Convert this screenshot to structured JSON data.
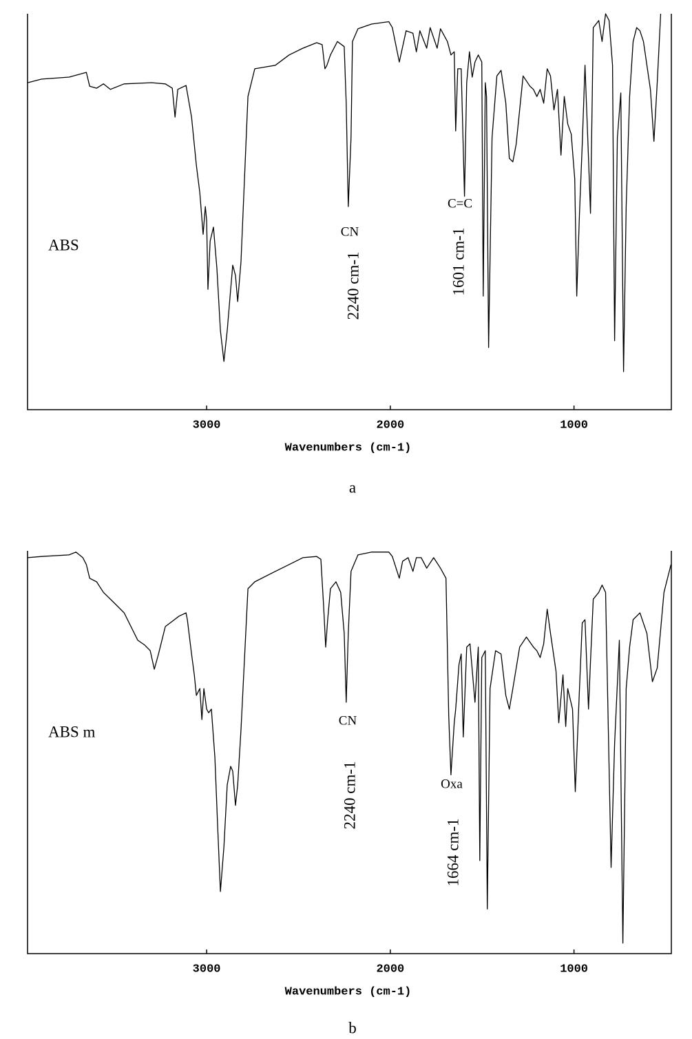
{
  "chart_data": [
    {
      "type": "line",
      "caption": "a",
      "x_label": "Wavenumbers (cm-1)",
      "xlim": [
        3975,
        470
      ],
      "xticks": [
        3000,
        2000,
        1000
      ],
      "ylim": [
        0,
        100
      ],
      "annotations": [
        "CN",
        "2240 cm-1",
        "C=C",
        "1601 cm-1"
      ],
      "x": [
        3974,
        3899,
        3749,
        3655,
        3637,
        3599,
        3562,
        3524,
        3449,
        3300,
        3225,
        3187,
        3172,
        3157,
        3112,
        3082,
        3056,
        3037,
        3019,
        3007,
        3000,
        2993,
        2981,
        2963,
        2944,
        2925,
        2906,
        2888,
        2869,
        2858,
        2843,
        2831,
        2813,
        2775,
        2738,
        2626,
        2551,
        2476,
        2401,
        2371,
        2356,
        2345,
        2326,
        2288,
        2251,
        2240,
        2229,
        2214,
        2206,
        2176,
        2101,
        2008,
        1989,
        1951,
        1914,
        1877,
        1858,
        1839,
        1802,
        1783,
        1745,
        1727,
        1689,
        1670,
        1652,
        1644,
        1633,
        1614,
        1596,
        1584,
        1569,
        1554,
        1539,
        1521,
        1502,
        1494,
        1483,
        1476,
        1465,
        1446,
        1420,
        1397,
        1371,
        1352,
        1333,
        1315,
        1277,
        1240,
        1221,
        1202,
        1184,
        1165,
        1146,
        1128,
        1109,
        1090,
        1071,
        1053,
        1034,
        1015,
        996,
        985,
        970,
        955,
        940,
        921,
        910,
        895,
        865,
        847,
        828,
        809,
        790,
        779,
        764,
        745,
        730,
        716,
        697,
        678,
        659,
        641,
        622,
        584,
        565,
        547,
        528
      ],
      "series": [
        {
          "name": "ABS",
          "color": "#000000",
          "values": [
            82.6,
            83.5,
            84,
            85.2,
            81.7,
            81.2,
            82.3,
            80.9,
            82.3,
            82.6,
            82.3,
            81.2,
            73.9,
            80.9,
            81.9,
            73.9,
            61.7,
            54.8,
            44.3,
            51.3,
            47.8,
            30.4,
            42.6,
            46.1,
            35.7,
            20,
            12.2,
            20,
            30.4,
            36.5,
            33.9,
            27.3,
            37.4,
            79.1,
            86.1,
            87,
            89.6,
            91.3,
            92.7,
            92.2,
            86.1,
            87,
            89.6,
            93,
            91.7,
            77.4,
            51.3,
            68.7,
            93,
            96.2,
            97.4,
            98,
            96.5,
            87.8,
            95.7,
            95.1,
            90.4,
            95.7,
            91.3,
            96.5,
            91.3,
            96.2,
            93,
            89.6,
            90.4,
            70.4,
            86.1,
            86.1,
            53.9,
            82.6,
            90.4,
            84,
            87.8,
            89.6,
            87.8,
            28.7,
            82.6,
            79.1,
            15.7,
            68.7,
            84.3,
            85.7,
            77.4,
            63.5,
            62.6,
            67,
            84.3,
            81.7,
            80.9,
            79.1,
            80.9,
            77.4,
            86.1,
            84.3,
            75.7,
            80.9,
            64.3,
            79.1,
            72.2,
            69.6,
            58.3,
            28.7,
            49.6,
            67,
            87,
            63.5,
            49.6,
            96.5,
            98.3,
            93,
            100,
            98.3,
            87,
            17.4,
            68.7,
            80,
            9.6,
            51.3,
            79.1,
            93,
            96.5,
            95.7,
            93,
            80.9,
            67.8,
            82.6,
            100
          ]
        }
      ]
    },
    {
      "type": "line",
      "caption": "b",
      "x_label": "Wavenumbers (cm-1)",
      "xlim": [
        3975,
        470
      ],
      "xticks": [
        3000,
        2000,
        1000
      ],
      "ylim": [
        0,
        100
      ],
      "annotations": [
        "CN",
        "2240 cm-1",
        "Oxa",
        "1664 cm-1"
      ],
      "x": [
        3974,
        3899,
        3749,
        3712,
        3674,
        3655,
        3637,
        3599,
        3562,
        3506,
        3449,
        3412,
        3375,
        3337,
        3307,
        3285,
        3262,
        3225,
        3150,
        3112,
        3105,
        3082,
        3067,
        3056,
        3037,
        3026,
        3015,
        3000,
        2989,
        2974,
        2955,
        2940,
        2925,
        2906,
        2888,
        2869,
        2858,
        2843,
        2831,
        2813,
        2775,
        2738,
        2626,
        2551,
        2476,
        2401,
        2378,
        2363,
        2352,
        2341,
        2326,
        2296,
        2270,
        2251,
        2240,
        2229,
        2214,
        2176,
        2101,
        2008,
        1989,
        1951,
        1933,
        1903,
        1877,
        1858,
        1832,
        1802,
        1764,
        1727,
        1697,
        1682,
        1670,
        1652,
        1644,
        1626,
        1614,
        1603,
        1584,
        1566,
        1539,
        1521,
        1513,
        1502,
        1483,
        1472,
        1457,
        1427,
        1397,
        1371,
        1352,
        1333,
        1296,
        1259,
        1221,
        1202,
        1184,
        1165,
        1146,
        1128,
        1098,
        1083,
        1060,
        1045,
        1034,
        1008,
        993,
        970,
        955,
        940,
        921,
        910,
        895,
        865,
        847,
        828,
        798,
        779,
        753,
        734,
        716,
        697,
        678,
        641,
        603,
        573,
        547,
        510,
        472
      ],
      "series": [
        {
          "name": "ABS m",
          "color": "#000000",
          "values": [
            98.3,
            98.6,
            99,
            99.7,
            98.3,
            96.6,
            93.2,
            92.3,
            89.7,
            87.2,
            84.6,
            81.2,
            77.8,
            76.6,
            75.2,
            70.6,
            74.4,
            81.2,
            83.8,
            84.6,
            82.9,
            74.4,
            69.2,
            64.1,
            65.8,
            58.1,
            65.8,
            60.7,
            59.8,
            60.7,
            48.7,
            31.6,
            15.4,
            26.5,
            41.9,
            46.5,
            45.3,
            36.8,
            41.9,
            55.6,
            90.6,
            92.3,
            94.9,
            96.6,
            98.3,
            98.6,
            97.9,
            86.3,
            76.1,
            82.9,
            90.6,
            92.3,
            89.7,
            79.5,
            62.4,
            79.5,
            94.9,
            99,
            99.7,
            99.7,
            98.6,
            93.2,
            97.4,
            98.3,
            94.9,
            98.3,
            98.3,
            95.7,
            98.3,
            95.7,
            93.2,
            59,
            44.4,
            57.3,
            60.7,
            71.8,
            74.4,
            53.8,
            76.1,
            76.9,
            62.4,
            76.1,
            23.1,
            73.5,
            75.2,
            11.1,
            65.8,
            75.2,
            74.4,
            64.1,
            60.7,
            65.8,
            76.1,
            78.6,
            76.1,
            75.2,
            73.5,
            76.9,
            85.5,
            79.5,
            70.1,
            57.3,
            69.2,
            56.4,
            65.8,
            60.7,
            40.2,
            65.8,
            82.1,
            82.9,
            60.7,
            72.6,
            88,
            89.7,
            91.5,
            89.7,
            21.4,
            52.1,
            77.8,
            2.6,
            65.8,
            76.1,
            82.9,
            84.6,
            79.5,
            67.5,
            70.9,
            89.7,
            96.6
          ]
        }
      ]
    }
  ]
}
